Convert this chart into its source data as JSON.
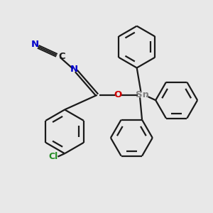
{
  "bg_color": "#e8e8e8",
  "bond_color": "#1a1a1a",
  "cl_color": "#228B22",
  "n_color": "#0000cc",
  "o_color": "#cc0000",
  "sn_color": "#808080",
  "c_color": "#1a1a1a",
  "line_width": 1.6,
  "fig_w": 3.0,
  "fig_h": 3.0,
  "dpi": 100,
  "xlim": [
    0,
    10
  ],
  "ylim": [
    0,
    10
  ]
}
